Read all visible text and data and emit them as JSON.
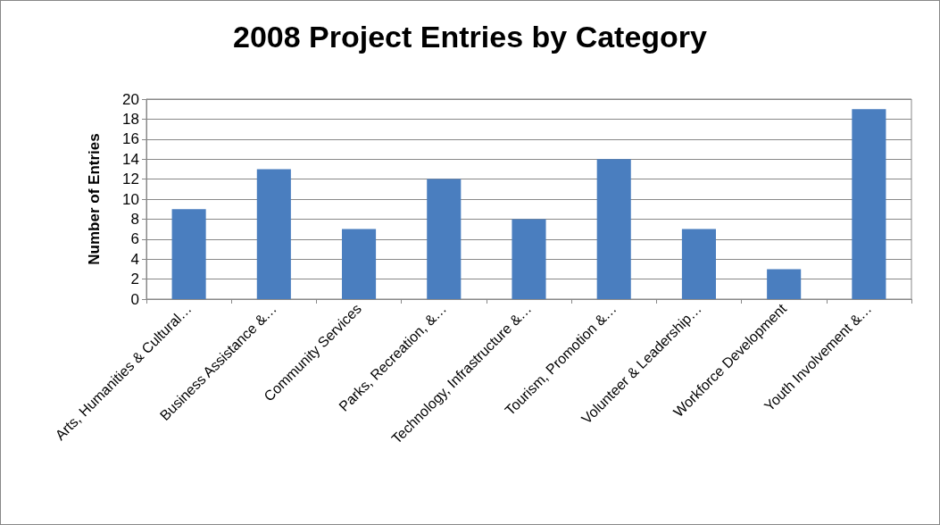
{
  "chart_data": {
    "type": "bar",
    "title": "2008 Project Entries by Category",
    "ylabel": "Number of Entries",
    "categories": [
      "Arts, Humanities & Cultural…",
      "Business Assistance &…",
      "Community Services",
      "Parks, Recreation, &…",
      "Technology, Infrastructure &…",
      "Tourism, Promotion &…",
      "Volunteer & Leadership…",
      "Workforce Development",
      "Youth Involvement &…"
    ],
    "values": [
      9,
      13,
      7,
      12,
      8,
      14,
      7,
      3,
      19
    ],
    "color": "#4a7ebf",
    "ylim": [
      0,
      20
    ],
    "yticks": [
      0,
      2,
      4,
      6,
      8,
      10,
      12,
      14,
      16,
      18,
      20
    ],
    "grid": "y"
  }
}
